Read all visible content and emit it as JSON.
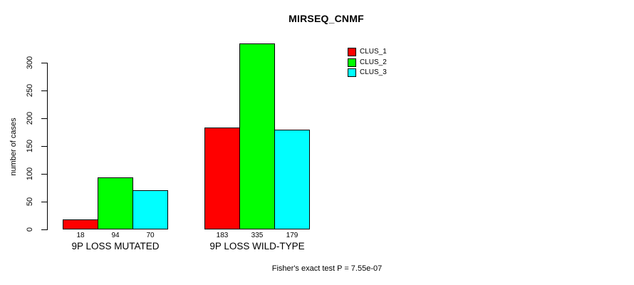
{
  "chart_data": {
    "type": "bar",
    "title": "MIRSEQ_CNMF",
    "ylabel": "number of cases",
    "xlabel": "",
    "categories": [
      "9P LOSS MUTATED",
      "9P LOSS WILD-TYPE"
    ],
    "series": [
      {
        "name": "CLUS_1",
        "color": "#FF0000",
        "values": [
          18,
          183
        ]
      },
      {
        "name": "CLUS_2",
        "color": "#00FF00",
        "values": [
          94,
          335
        ]
      },
      {
        "name": "CLUS_3",
        "color": "#00FFFF",
        "values": [
          70,
          179
        ]
      }
    ],
    "bar_value_labels_shown": true,
    "yticks": [
      0,
      50,
      100,
      150,
      200,
      250,
      300
    ],
    "ylim": [
      0,
      335
    ],
    "grid": false,
    "legend": {
      "position": "top-right",
      "entries": [
        "CLUS_1",
        "CLUS_2",
        "CLUS_3"
      ]
    },
    "annotation": "Fisher's exact test P = 7.55e-07"
  },
  "colors": {
    "background": "#FFFFFF",
    "axis": "#000000",
    "text": "#000000",
    "clus_1": "#FF0000",
    "clus_2": "#00FF00",
    "clus_3": "#00FFFF"
  }
}
